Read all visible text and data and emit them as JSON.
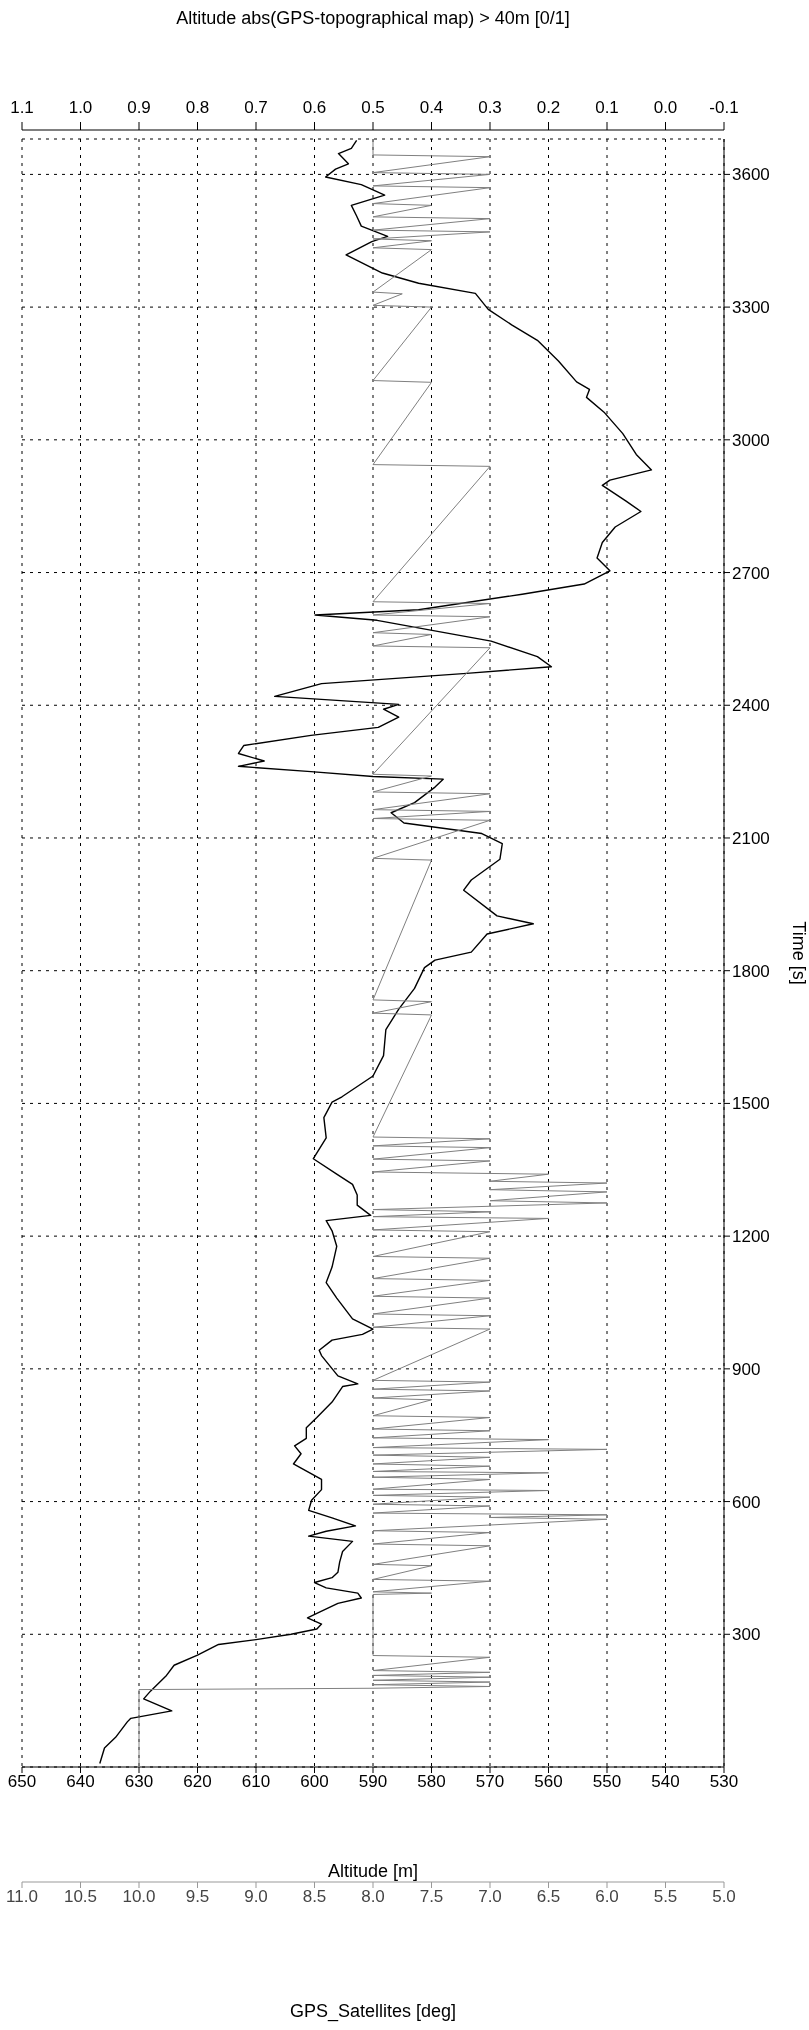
{
  "chart_data": {
    "type": "line",
    "ylabel": "Time [s]",
    "xlabel": "Altitude [m]",
    "x2label": "GPS_Satellites [deg]",
    "annotations": [
      "Altitude abs(GPS-topographical map) > 40m [0/1]",
      "1.1",
      "1.0",
      "0.9",
      "0.8",
      "0.7",
      "0.6",
      "0.5",
      "0.4",
      "0.3",
      "0.2",
      "0.1",
      "0.0",
      "-0.1"
    ],
    "ylim": [
      0,
      3680
    ],
    "yticks": [
      300,
      600,
      900,
      1200,
      1500,
      1800,
      2100,
      2400,
      2700,
      3000,
      3300,
      3600
    ],
    "xlim": [
      650,
      530
    ],
    "xticks": [
      650,
      640,
      630,
      620,
      610,
      600,
      590,
      580,
      570,
      560,
      550,
      540,
      530
    ],
    "x2lim": [
      11,
      5
    ],
    "x2ticks": [
      {
        "value": 11,
        "label": "11.0"
      },
      10.5,
      {
        "value": 10,
        "label": "10.0"
      },
      9.5,
      {
        "value": 9,
        "label": "9.0"
      },
      8.5,
      {
        "value": 8,
        "label": "8.0"
      },
      7.5,
      {
        "value": 7,
        "label": "7.0"
      },
      6.5,
      {
        "value": 6,
        "label": "6.0"
      },
      5.5,
      {
        "value": 5,
        "label": "5.0"
      }
    ],
    "grid": true,
    "line_style": "solid",
    "marker": "none",
    "series": [
      {
        "color": "#000000",
        "values": [
          8,
          43,
          67,
          102,
          110,
          127,
          154,
          172,
          207,
          230,
          253,
          277,
          288,
          300,
          312,
          323,
          337,
          347,
          370,
          382,
          393,
          405,
          417,
          428,
          440,
          463,
          487,
          510,
          522,
          533,
          545,
          563,
          580,
          603,
          627,
          650,
          673,
          685,
          708,
          726,
          743,
          767,
          790,
          825,
          860,
          866,
          884,
          930,
          942,
          965,
          978,
          990,
          1013,
          1060,
          1095,
          1130,
          1177,
          1212,
          1235,
          1247,
          1270,
          1293,
          1317,
          1340,
          1375,
          1422,
          1468,
          1503,
          1515,
          1562,
          1608,
          1667,
          1713,
          1760,
          1807,
          1824,
          1842,
          1883,
          1906,
          1924,
          1982,
          2005,
          2052,
          2087,
          2110,
          2134,
          2157,
          2180,
          2215,
          2233,
          2239,
          2250,
          2262,
          2274,
          2291,
          2309,
          2332,
          2350,
          2373,
          2391,
          2402,
          2420,
          2449,
          2472,
          2487,
          2510,
          2545,
          2592,
          2604,
          2616,
          2651,
          2674,
          2704,
          2733,
          2768,
          2803,
          2838,
          2862,
          2897,
          2909,
          2932,
          2967,
          3014,
          3061,
          3096,
          3114,
          3131,
          3178,
          3225,
          3260,
          3295,
          3331,
          3354,
          3377,
          3418,
          3448,
          3460,
          3483,
          3506,
          3530,
          3553,
          3577,
          3594,
          3612,
          3624,
          3647,
          3659,
          3677
        ],
        "x": [
          636.7,
          635.9,
          634,
          632,
          631.4,
          624.4,
          629.2,
          628,
          625.3,
          624,
          620,
          616.4,
          610,
          604,
          599.6,
          598.8,
          601.2,
          599.6,
          596,
          592,
          592.6,
          598,
          600,
          597,
          596,
          595.7,
          595.2,
          593.5,
          601,
          598,
          593,
          597,
          601,
          600.5,
          598.8,
          598.8,
          601.9,
          603.6,
          602.3,
          603.4,
          601.4,
          601.4,
          599.6,
          597,
          595.2,
          592.6,
          596,
          598.8,
          599.2,
          597,
          591.8,
          590,
          593.5,
          596.2,
          598,
          597,
          596.2,
          597,
          598,
          590.4,
          592.7,
          592.7,
          593.5,
          596.2,
          600.2,
          598,
          598.4,
          597,
          595.3,
          590,
          588.2,
          587.8,
          585.6,
          582.9,
          581.2,
          579.4,
          573.2,
          570.5,
          562.6,
          568.8,
          574.5,
          573.2,
          568.3,
          567.9,
          571.4,
          584.7,
          586.9,
          582.9,
          579.4,
          578,
          590,
          600.6,
          613,
          608.6,
          613,
          612.1,
          600.6,
          589.1,
          585.6,
          588.2,
          585.6,
          606.8,
          598.8,
          574,
          559.5,
          561.9,
          569.8,
          589.3,
          599.9,
          582.2,
          564.5,
          553.9,
          549.5,
          551.7,
          550.8,
          548.6,
          544.2,
          546.8,
          550.8,
          549.5,
          542.4,
          545,
          547.3,
          550.4,
          553.5,
          553,
          555.2,
          558.3,
          561.9,
          566.3,
          570.3,
          572.5,
          582.2,
          588.4,
          594.6,
          590.2,
          587.5,
          592,
          592.8,
          593.7,
          588,
          592,
          598.1,
          596.4,
          594.2,
          595.9,
          593.7,
          592.8
        ]
      },
      {
        "color": "#808080",
        "axis": "x2",
        "values": [
          5,
          175,
          178,
          182,
          186,
          192,
          196,
          203,
          207,
          214,
          218,
          248,
          252,
          390,
          393,
          396,
          420,
          424,
          455,
          458,
          500,
          504,
          530,
          534,
          560,
          564,
          570,
          574,
          590,
          594,
          610,
          614,
          625,
          628,
          650,
          655,
          665,
          668,
          680,
          685,
          700,
          705,
          718,
          722,
          740,
          744,
          760,
          764,
          790,
          794,
          830,
          834,
          850,
          854,
          870,
          874,
          990,
          994,
          1020,
          1024,
          1060,
          1064,
          1100,
          1104,
          1150,
          1154,
          1210,
          1214,
          1240,
          1244,
          1255,
          1260,
          1275,
          1280,
          1300,
          1305,
          1320,
          1324,
          1340,
          1345,
          1370,
          1374,
          1400,
          1404,
          1420,
          1424,
          1700,
          1704,
          1730,
          1734,
          2050,
          2054,
          2140,
          2144,
          2160,
          2164,
          2200,
          2204,
          2240,
          2244,
          2530,
          2534,
          2560,
          2564,
          2600,
          2604,
          2630,
          2634,
          2940,
          2944,
          3130,
          3134,
          3300,
          3304,
          3330,
          3334,
          3430,
          3434,
          3450,
          3454,
          3470,
          3474,
          3500,
          3504,
          3530,
          3534,
          3570,
          3574,
          3600,
          3604,
          3640,
          3644,
          3680
        ],
        "x": [
          10,
          10,
          8,
          7,
          8,
          7,
          8,
          7,
          8,
          7,
          8,
          7,
          8,
          8,
          7.5,
          8,
          7,
          8,
          7.5,
          8,
          7,
          8,
          7,
          8,
          6,
          7,
          6,
          8,
          7,
          8,
          7,
          8,
          6.5,
          8,
          7,
          8,
          6.5,
          8,
          7,
          8,
          7,
          8,
          6,
          8,
          6.5,
          8,
          7,
          8,
          7,
          8,
          7.5,
          8,
          7,
          8,
          7,
          8,
          7,
          8,
          7,
          8,
          7,
          8,
          7,
          8,
          7,
          8,
          7,
          8,
          6.5,
          8,
          7,
          8,
          6,
          7,
          6,
          7,
          6,
          7,
          6.5,
          8,
          7,
          8,
          7,
          8,
          7,
          8,
          7.5,
          8,
          7.5,
          8,
          7.5,
          8,
          7,
          8,
          7,
          8,
          7,
          8,
          7.5,
          8,
          7,
          8,
          7.5,
          8,
          7,
          8,
          7,
          8,
          7,
          8,
          7.5,
          8,
          7.5,
          8,
          7.75,
          8,
          7.5,
          8,
          7.5,
          8,
          7,
          8,
          7,
          8,
          7.5,
          8,
          7,
          8,
          7,
          8,
          7,
          8,
          8
        ]
      }
    ]
  }
}
